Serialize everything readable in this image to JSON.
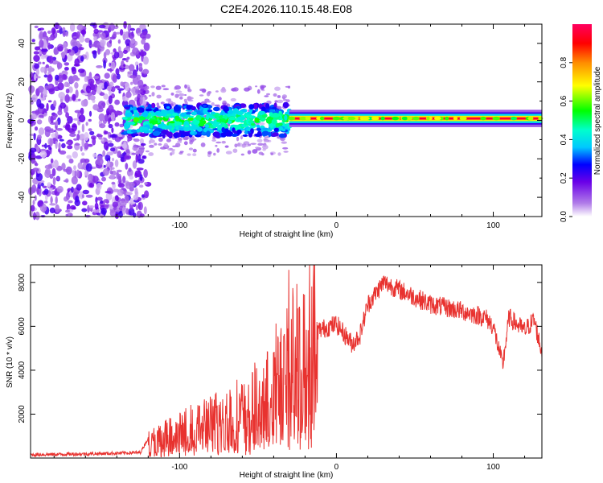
{
  "figure_title": "C2E4.2026.110.15.48.E08",
  "colors": {
    "signal": "#e8322f",
    "frame": "#000000",
    "background": "#ffffff"
  },
  "chart_data": [
    {
      "type": "heatmap",
      "title": "C2E4.2026.110.15.48.E08",
      "xlabel": "Height of straight line (km)",
      "ylabel": "Frequency (Hz)",
      "xlim": [
        -195,
        131
      ],
      "ylim": [
        -50,
        50
      ],
      "xticks": [
        -100,
        0,
        100
      ],
      "yticks": [
        -40,
        -20,
        0,
        20,
        40
      ],
      "colorbar": {
        "label": "Normalized spectral amplitude",
        "range": [
          0,
          1
        ],
        "ticks": [
          0.0,
          0.2,
          0.4,
          0.6,
          0.8
        ]
      },
      "features": [
        {
          "region": "noise",
          "x_range": [
            -195,
            -120
          ],
          "freq_range": [
            -50,
            50
          ],
          "amplitude": 0.12
        },
        {
          "region": "broad signal",
          "x_range": [
            -135,
            -30
          ],
          "freq_center": 0,
          "freq_halfwidth": 8,
          "amplitude": 0.45
        },
        {
          "region": "narrow carrier",
          "x_range": [
            -30,
            131
          ],
          "freq_center": 1,
          "freq_halfwidth": 2,
          "amplitude": 0.95
        }
      ]
    },
    {
      "type": "line",
      "xlabel": "Height of straight line (km)",
      "ylabel": "SNR (10 * v/v)",
      "xlim": [
        -195,
        131
      ],
      "ylim": [
        0,
        8800
      ],
      "xticks": [
        -100,
        0,
        100
      ],
      "yticks": [
        2000,
        4000,
        6000,
        8000
      ],
      "envelope": [
        {
          "x": -195,
          "y": 150
        },
        {
          "x": -150,
          "y": 200
        },
        {
          "x": -125,
          "y": 250
        },
        {
          "x": -120,
          "y": 900
        },
        {
          "x": -100,
          "y": 1400
        },
        {
          "x": -80,
          "y": 2000
        },
        {
          "x": -60,
          "y": 2500
        },
        {
          "x": -40,
          "y": 3500
        },
        {
          "x": -30,
          "y": 4600
        },
        {
          "x": -20,
          "y": 5200
        },
        {
          "x": -12,
          "y": 5800
        },
        {
          "x": 0,
          "y": 6100
        },
        {
          "x": 10,
          "y": 5200
        },
        {
          "x": 15,
          "y": 5600
        },
        {
          "x": 20,
          "y": 7000
        },
        {
          "x": 30,
          "y": 8000
        },
        {
          "x": 45,
          "y": 7500
        },
        {
          "x": 60,
          "y": 7000
        },
        {
          "x": 80,
          "y": 6700
        },
        {
          "x": 95,
          "y": 6400
        },
        {
          "x": 100,
          "y": 6000
        },
        {
          "x": 106,
          "y": 4200
        },
        {
          "x": 110,
          "y": 6400
        },
        {
          "x": 120,
          "y": 5800
        },
        {
          "x": 126,
          "y": 6300
        },
        {
          "x": 131,
          "y": 4800
        }
      ]
    }
  ]
}
